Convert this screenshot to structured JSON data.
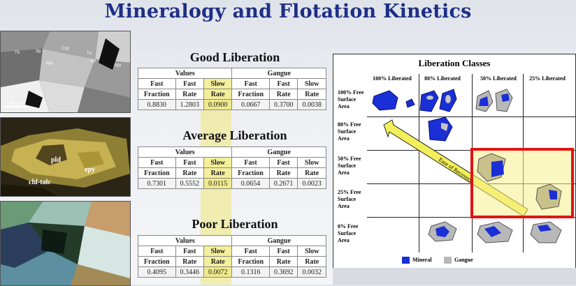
{
  "title": "Mineralogy and Flotation Kinetics",
  "photos": {
    "p1_labels": [
      "Th",
      "Sp",
      "Ccp",
      "Tn",
      "Gn",
      "Apy",
      "Apy",
      "100 μm"
    ],
    "p2_labels": [
      "pld",
      "epy",
      "chl-talc"
    ]
  },
  "tables": [
    {
      "heading": "Good Liberation",
      "group_values": "Values",
      "group_gangue": "Gangue",
      "cols": [
        [
          "Fast",
          "Fraction"
        ],
        [
          "Fast",
          "Rate"
        ],
        [
          "Slow",
          "Rate"
        ],
        [
          "Fast",
          "Fraction"
        ],
        [
          "Fast",
          "Rate"
        ],
        [
          "Slow",
          "Rate"
        ]
      ],
      "values": [
        "0.8830",
        "1.2803",
        "0.0900",
        "0.0667",
        "0.3700",
        "0.0038"
      ]
    },
    {
      "heading": "Average Liberation",
      "group_values": "Values",
      "group_gangue": "Gangue",
      "cols": [
        [
          "Fast",
          "Fraction"
        ],
        [
          "Fast",
          "Rate"
        ],
        [
          "Slow",
          "Rate"
        ],
        [
          "Fast",
          "Fraction"
        ],
        [
          "Fast",
          "Rate"
        ],
        [
          "Slow",
          "Rate"
        ]
      ],
      "values": [
        "0.7301",
        "0.5552",
        "0.0115",
        "0.0654",
        "0.2671",
        "0.0023"
      ]
    },
    {
      "heading": "Poor Liberation",
      "group_values": "Values",
      "group_gangue": "Gangue",
      "cols": [
        [
          "Fast",
          "Fraction"
        ],
        [
          "Fast",
          "Rate"
        ],
        [
          "Slow",
          "Rate"
        ],
        [
          "Fast",
          "Fraction"
        ],
        [
          "Fast",
          "Rate"
        ],
        [
          "Slow",
          "Rate"
        ]
      ],
      "values": [
        "0.4095",
        "0.3446",
        "0.0072",
        "0.1316",
        "0.3692",
        "0.0032"
      ]
    }
  ],
  "liberation": {
    "title": "Liberation Classes",
    "columns": [
      "100% Liberated",
      "80% Liberated",
      "50% Liberated",
      "25% Liberated"
    ],
    "rows": [
      [
        "100% Free",
        "Surface",
        "Area"
      ],
      [
        "80% Free",
        "Surface",
        "Area"
      ],
      [
        "50% Free",
        "Surface",
        "Area"
      ],
      [
        "25% Free",
        "Surface",
        "Area"
      ],
      [
        "0% Free",
        "Surface",
        "Area"
      ]
    ],
    "arrow_label": "Ease of Recovery",
    "legend_mineral": "Mineral",
    "legend_gangue": "Gangue",
    "colors": {
      "mineral": "#1a2fd6",
      "gangue": "#b8b8b8",
      "arrow": "#f2ef5a",
      "highlight": "#e01414"
    }
  }
}
